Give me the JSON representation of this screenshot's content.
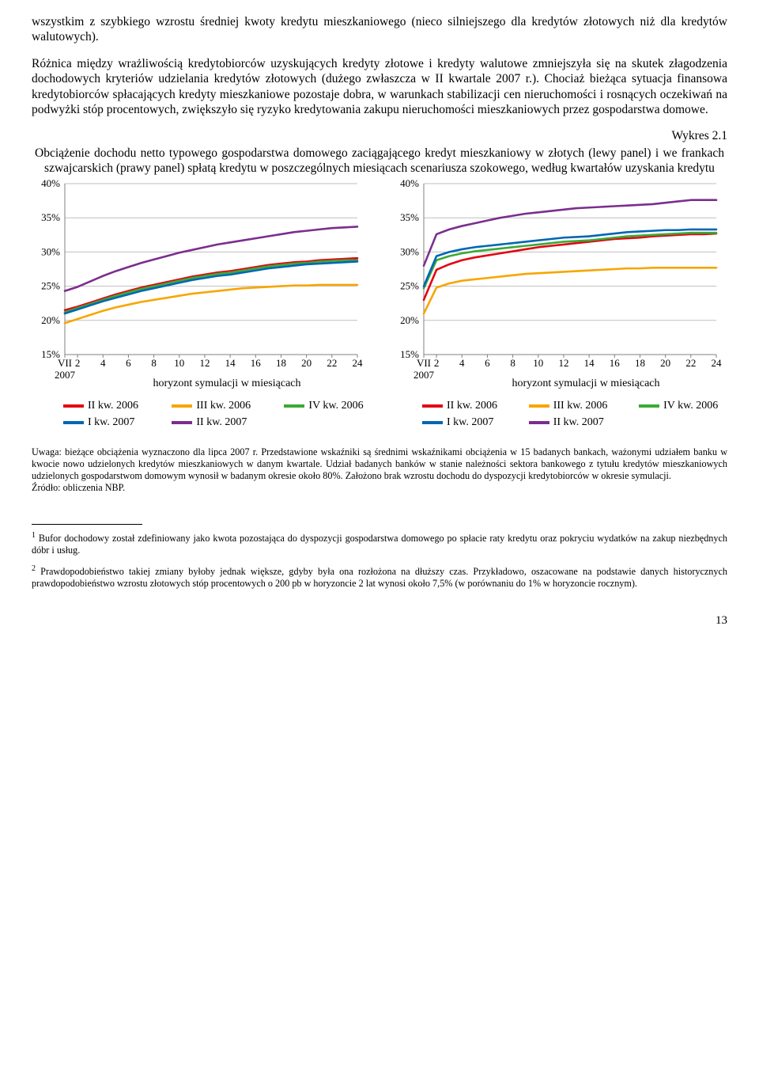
{
  "para1": "wszystkim z szybkiego wzrostu średniej kwoty kredytu mieszkaniowego (nieco silniejszego dla kredytów złotowych niż dla kredytów walutowych).",
  "para2": "Różnica między wrażliwością kredytobiorców uzyskujących kredyty złotowe i kredyty walutowe zmniejszyła się na skutek złagodzenia dochodowych kryteriów udzielania kredytów złotowych (dużego zwłaszcza w II kwartale 2007 r.). Chociaż bieżąca sytuacja finansowa kredytobiorców spłacających kredyty mieszkaniowe pozostaje dobra, w warunkach stabilizacji cen nieruchomości i rosnących oczekiwań na podwyżki stóp procentowych, zwiększyło się ryzyko kredytowania zakupu nieruchomości mieszkaniowych przez gospodarstwa domowe.",
  "wykres_label": "Wykres 2.1",
  "chart_caption": "Obciążenie dochodu netto typowego gospodarstwa domowego zaciągającego kredyt mieszkaniowy w złotych (lewy panel) i we frankach szwajcarskich (prawy panel) spłatą kredytu w poszczególnych miesiącach scenariusza szokowego, według kwartałów uzyskania kredytu",
  "x_label": "horyzont symulacji w miesiącach",
  "y_ticks": [
    "15%",
    "20%",
    "25%",
    "30%",
    "35%",
    "40%"
  ],
  "y_min": 15,
  "y_max": 40,
  "x_start_label": "VII\n2007",
  "x_ticks": [
    2,
    4,
    6,
    8,
    10,
    12,
    14,
    16,
    18,
    20,
    22,
    24
  ],
  "colors": {
    "grid": "#bfbfbf",
    "axis": "#808080",
    "bg": "#ffffff",
    "II_2006": "#e30613",
    "III_2006": "#f7a600",
    "IV_2006": "#3aaa35",
    "I_2007": "#0066b3",
    "II_2007": "#7b2e8e"
  },
  "legend": {
    "II_2006": "II kw. 2006",
    "III_2006": "III kw. 2006",
    "IV_2006": "IV kw. 2006",
    "I_2007": "I kw. 2007",
    "II_2007": "II kw. 2007"
  },
  "left_series": {
    "II_2006": [
      21.5,
      22.0,
      22.6,
      23.2,
      23.8,
      24.3,
      24.8,
      25.2,
      25.6,
      26.0,
      26.4,
      26.7,
      27.0,
      27.2,
      27.5,
      27.8,
      28.1,
      28.3,
      28.5,
      28.6,
      28.8,
      28.9,
      29.0,
      29.1
    ],
    "III_2006": [
      19.6,
      20.2,
      20.8,
      21.4,
      21.9,
      22.3,
      22.7,
      23.0,
      23.3,
      23.6,
      23.9,
      24.1,
      24.3,
      24.5,
      24.7,
      24.8,
      24.9,
      25.0,
      25.1,
      25.1,
      25.2,
      25.2,
      25.2,
      25.2
    ],
    "IV_2006": [
      21.2,
      21.8,
      22.4,
      23.0,
      23.6,
      24.1,
      24.6,
      25.0,
      25.4,
      25.8,
      26.2,
      26.5,
      26.8,
      27.0,
      27.3,
      27.6,
      27.9,
      28.1,
      28.3,
      28.4,
      28.6,
      28.7,
      28.8,
      28.8
    ],
    "I_2007": [
      21.0,
      21.6,
      22.2,
      22.8,
      23.3,
      23.8,
      24.3,
      24.7,
      25.1,
      25.5,
      25.9,
      26.2,
      26.5,
      26.7,
      27.0,
      27.3,
      27.6,
      27.8,
      28.0,
      28.2,
      28.3,
      28.4,
      28.5,
      28.6
    ],
    "II_2007": [
      24.3,
      24.9,
      25.7,
      26.5,
      27.2,
      27.8,
      28.4,
      28.9,
      29.4,
      29.9,
      30.3,
      30.7,
      31.1,
      31.4,
      31.7,
      32.0,
      32.3,
      32.6,
      32.9,
      33.1,
      33.3,
      33.5,
      33.6,
      33.7
    ]
  },
  "right_series": {
    "II_2006": [
      23.0,
      27.4,
      28.2,
      28.8,
      29.2,
      29.5,
      29.8,
      30.1,
      30.4,
      30.7,
      30.9,
      31.1,
      31.3,
      31.5,
      31.7,
      31.9,
      32.0,
      32.1,
      32.3,
      32.4,
      32.5,
      32.6,
      32.6,
      32.7
    ],
    "III_2006": [
      21.0,
      24.8,
      25.4,
      25.8,
      26.0,
      26.2,
      26.4,
      26.6,
      26.8,
      26.9,
      27.0,
      27.1,
      27.2,
      27.3,
      27.4,
      27.5,
      27.6,
      27.6,
      27.7,
      27.7,
      27.7,
      27.7,
      27.7,
      27.7
    ],
    "IV_2006": [
      24.7,
      28.8,
      29.4,
      29.8,
      30.1,
      30.3,
      30.5,
      30.7,
      30.9,
      31.1,
      31.3,
      31.5,
      31.6,
      31.7,
      31.9,
      32.1,
      32.3,
      32.4,
      32.5,
      32.6,
      32.7,
      32.8,
      32.8,
      32.8
    ],
    "I_2007": [
      25.0,
      29.4,
      30.0,
      30.4,
      30.7,
      30.9,
      31.1,
      31.3,
      31.5,
      31.7,
      31.9,
      32.1,
      32.2,
      32.3,
      32.5,
      32.7,
      32.9,
      33.0,
      33.1,
      33.2,
      33.2,
      33.3,
      33.3,
      33.3
    ],
    "II_2007": [
      28.0,
      32.6,
      33.3,
      33.8,
      34.2,
      34.6,
      35.0,
      35.3,
      35.6,
      35.8,
      36.0,
      36.2,
      36.4,
      36.5,
      36.6,
      36.7,
      36.8,
      36.9,
      37.0,
      37.2,
      37.4,
      37.6,
      37.6,
      37.6
    ]
  },
  "note": "Uwaga: bieżące obciążenia wyznaczono dla lipca 2007 r. Przedstawione wskaźniki są średnimi wskaźnikami obciążenia w 15 badanych bankach, ważonymi udziałem banku w kwocie nowo udzielonych kredytów mieszkaniowych w danym kwartale. Udział badanych banków w stanie należności sektora bankowego z tytułu kredytów mieszkaniowych udzielonych gospodarstwom domowym wynosił w badanym okresie około 80%. Założono brak wzrostu dochodu do dyspozycji kredytobiorców w okresie symulacji.",
  "source": "Źródło: obliczenia NBP.",
  "footnote1": "Bufor dochodowy został zdefiniowany jako kwota pozostająca do dyspozycji gospodarstwa domowego po spłacie raty kredytu oraz pokryciu wydatków na zakup niezbędnych dóbr i usług.",
  "footnote2": "Prawdopodobieństwo takiej zmiany byłoby jednak większe, gdyby była ona rozłożona na dłuższy czas. Przykładowo, oszacowane na podstawie danych historycznych prawdopodobieństwo wzrostu złotowych stóp procentowych o 200 pb w horyzoncie 2 lat wynosi około 7,5% (w porównaniu do 1% w horyzoncie rocznym).",
  "page": "13"
}
